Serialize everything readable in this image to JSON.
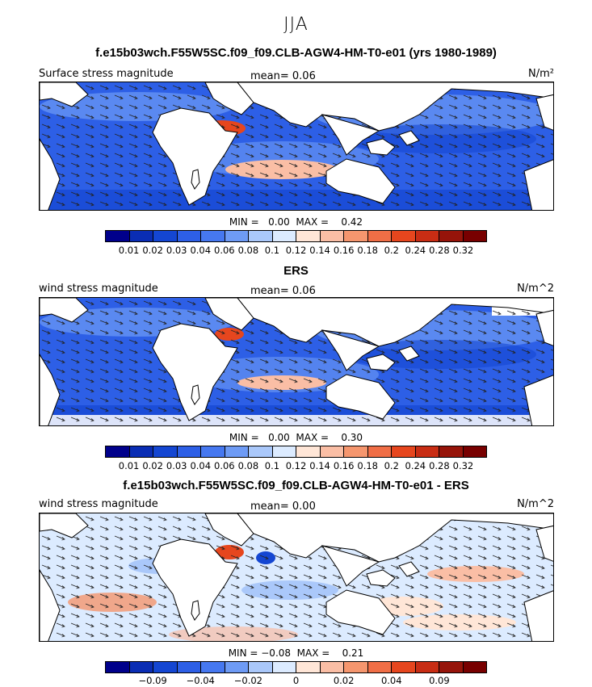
{
  "figure": {
    "season": "JJA"
  },
  "panels": [
    {
      "title": "f.e15b03wch.F55W5SC.f09_f09.CLB-AGW4-HM-T0-e01 (yrs 1980-1989)",
      "variable": "Surface stress magnitude",
      "mean_text": "mean=   0.06",
      "units": "N/m²",
      "minmax_text": "MIN =   0.00  MAX =    0.42",
      "colorbar": {
        "colors": [
          "#00008b",
          "#0a2db4",
          "#1446d2",
          "#2d5fe6",
          "#4678f0",
          "#6e9bf5",
          "#aac8fa",
          "#dcebff",
          "#ffe6d7",
          "#fabea5",
          "#f5966e",
          "#f06e46",
          "#e6461e",
          "#c82d14",
          "#96140a",
          "#780000"
        ],
        "ticks": [
          "0.01",
          "0.02",
          "0.03",
          "0.04",
          "0.06",
          "0.08",
          "0.1",
          "0.12",
          "0.14",
          "0.16",
          "0.18",
          "0.2",
          "0.24",
          "0.28",
          "0.32"
        ]
      }
    },
    {
      "title": "ERS",
      "variable": "wind stress magnitude",
      "mean_text": "mean=   0.06",
      "units": "N/m^2",
      "minmax_text": "MIN =   0.00  MAX =    0.30",
      "colorbar": {
        "colors": [
          "#00008b",
          "#0a2db4",
          "#1446d2",
          "#2d5fe6",
          "#4678f0",
          "#6e9bf5",
          "#aac8fa",
          "#dcebff",
          "#ffe6d7",
          "#fabea5",
          "#f5966e",
          "#f06e46",
          "#e6461e",
          "#c82d14",
          "#96140a",
          "#780000"
        ],
        "ticks": [
          "0.01",
          "0.02",
          "0.03",
          "0.04",
          "0.06",
          "0.08",
          "0.1",
          "0.12",
          "0.14",
          "0.16",
          "0.18",
          "0.2",
          "0.24",
          "0.28",
          "0.32"
        ]
      }
    },
    {
      "title": "f.e15b03wch.F55W5SC.f09_f09.CLB-AGW4-HM-T0-e01 - ERS",
      "variable": "wind stress magnitude",
      "mean_text": "mean=   0.00",
      "units": "N/m^2",
      "minmax_text": "MIN = −0.08  MAX =    0.21",
      "colorbar": {
        "colors": [
          "#00008b",
          "#0a2db4",
          "#1446d2",
          "#2d5fe6",
          "#4678f0",
          "#6e9bf5",
          "#aac8fa",
          "#dcebff",
          "#ffe6d7",
          "#fabea5",
          "#f5966e",
          "#f06e46",
          "#e6461e",
          "#c82d14",
          "#96140a",
          "#780000"
        ],
        "ticks": [
          "−0.09",
          "−0.04",
          "−0.02",
          "0",
          "0.02",
          "0.04",
          "0.09"
        ]
      }
    }
  ]
}
